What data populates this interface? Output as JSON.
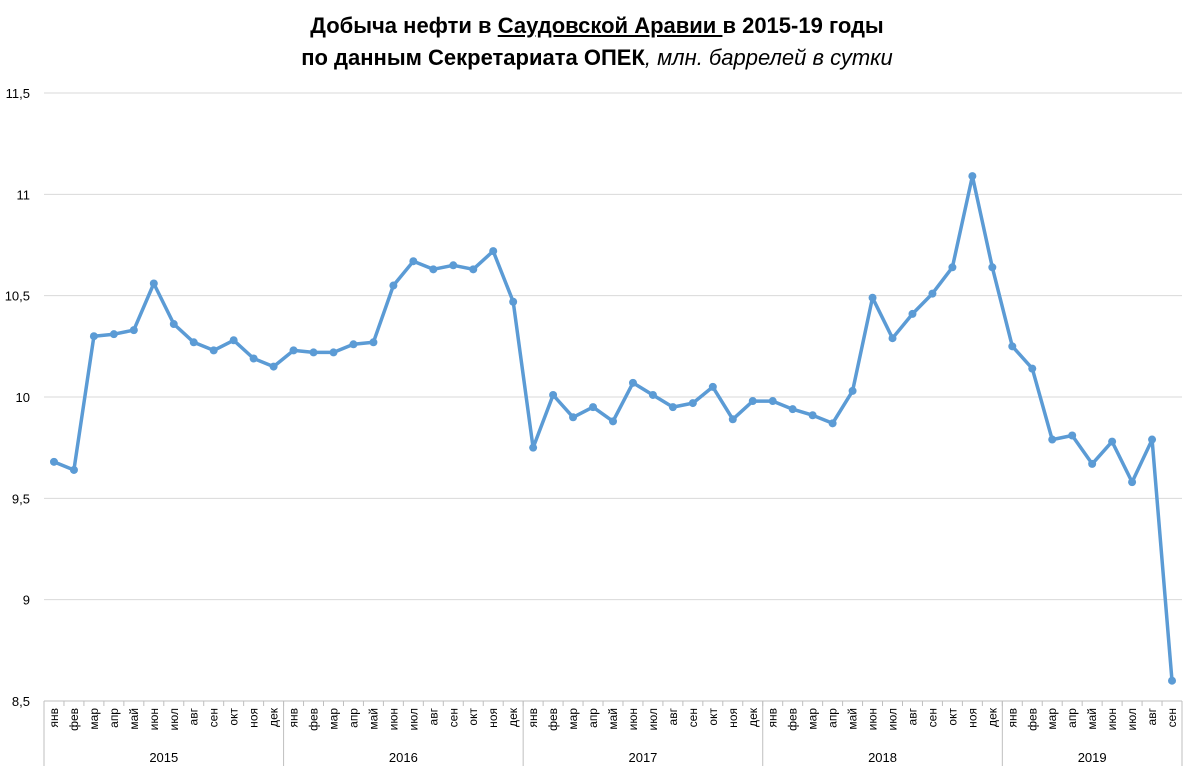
{
  "title": {
    "part1": "Добыча нефти в ",
    "part2": "Саудовской Аравии ",
    "part3": "в 2015-19 годы",
    "line2_bold": "по данным Секретариата ОПЕК",
    "line2_italic": ", млн. баррелей в сутки"
  },
  "colors": {
    "line": "#5B9BD5",
    "grid": "#D9D9D9",
    "axis": "#BFBFBF"
  },
  "chart_data": {
    "type": "line",
    "title": "Добыча нефти в Саудовской Аравии в 2015-19 годы по данным Секретариата ОПЕК, млн. баррелей в сутки",
    "ylim": [
      8.5,
      11.5
    ],
    "yticks": [
      "8,5",
      "9",
      "9,5",
      "10",
      "10,5",
      "11",
      "11,5"
    ],
    "ytick_values": [
      8.5,
      9,
      9.5,
      10,
      10.5,
      11,
      11.5
    ],
    "grid": true,
    "month_labels": [
      "янв",
      "фев",
      "мар",
      "апр",
      "май",
      "июн",
      "июл",
      "авг",
      "сен",
      "окт",
      "ноя",
      "дек"
    ],
    "years": [
      {
        "label": "2015",
        "months": 12
      },
      {
        "label": "2016",
        "months": 12
      },
      {
        "label": "2017",
        "months": 12
      },
      {
        "label": "2018",
        "months": 12
      },
      {
        "label": "2019",
        "months": 9
      }
    ],
    "series": [
      {
        "values": [
          9.68,
          9.64,
          10.3,
          10.31,
          10.33,
          10.56,
          10.36,
          10.27,
          10.23,
          10.28,
          10.19,
          10.15,
          10.23,
          10.22,
          10.22,
          10.26,
          10.27,
          10.55,
          10.67,
          10.63,
          10.65,
          10.63,
          10.72,
          10.47,
          9.75,
          10.01,
          9.9,
          9.95,
          9.88,
          10.07,
          10.01,
          9.95,
          9.97,
          10.05,
          9.89,
          9.98,
          9.98,
          9.94,
          9.91,
          9.87,
          10.03,
          10.49,
          10.29,
          10.41,
          10.51,
          10.64,
          11.09,
          10.64,
          10.25,
          10.14,
          9.79,
          9.81,
          9.67,
          9.78,
          9.58,
          9.79,
          8.6
        ]
      }
    ]
  }
}
